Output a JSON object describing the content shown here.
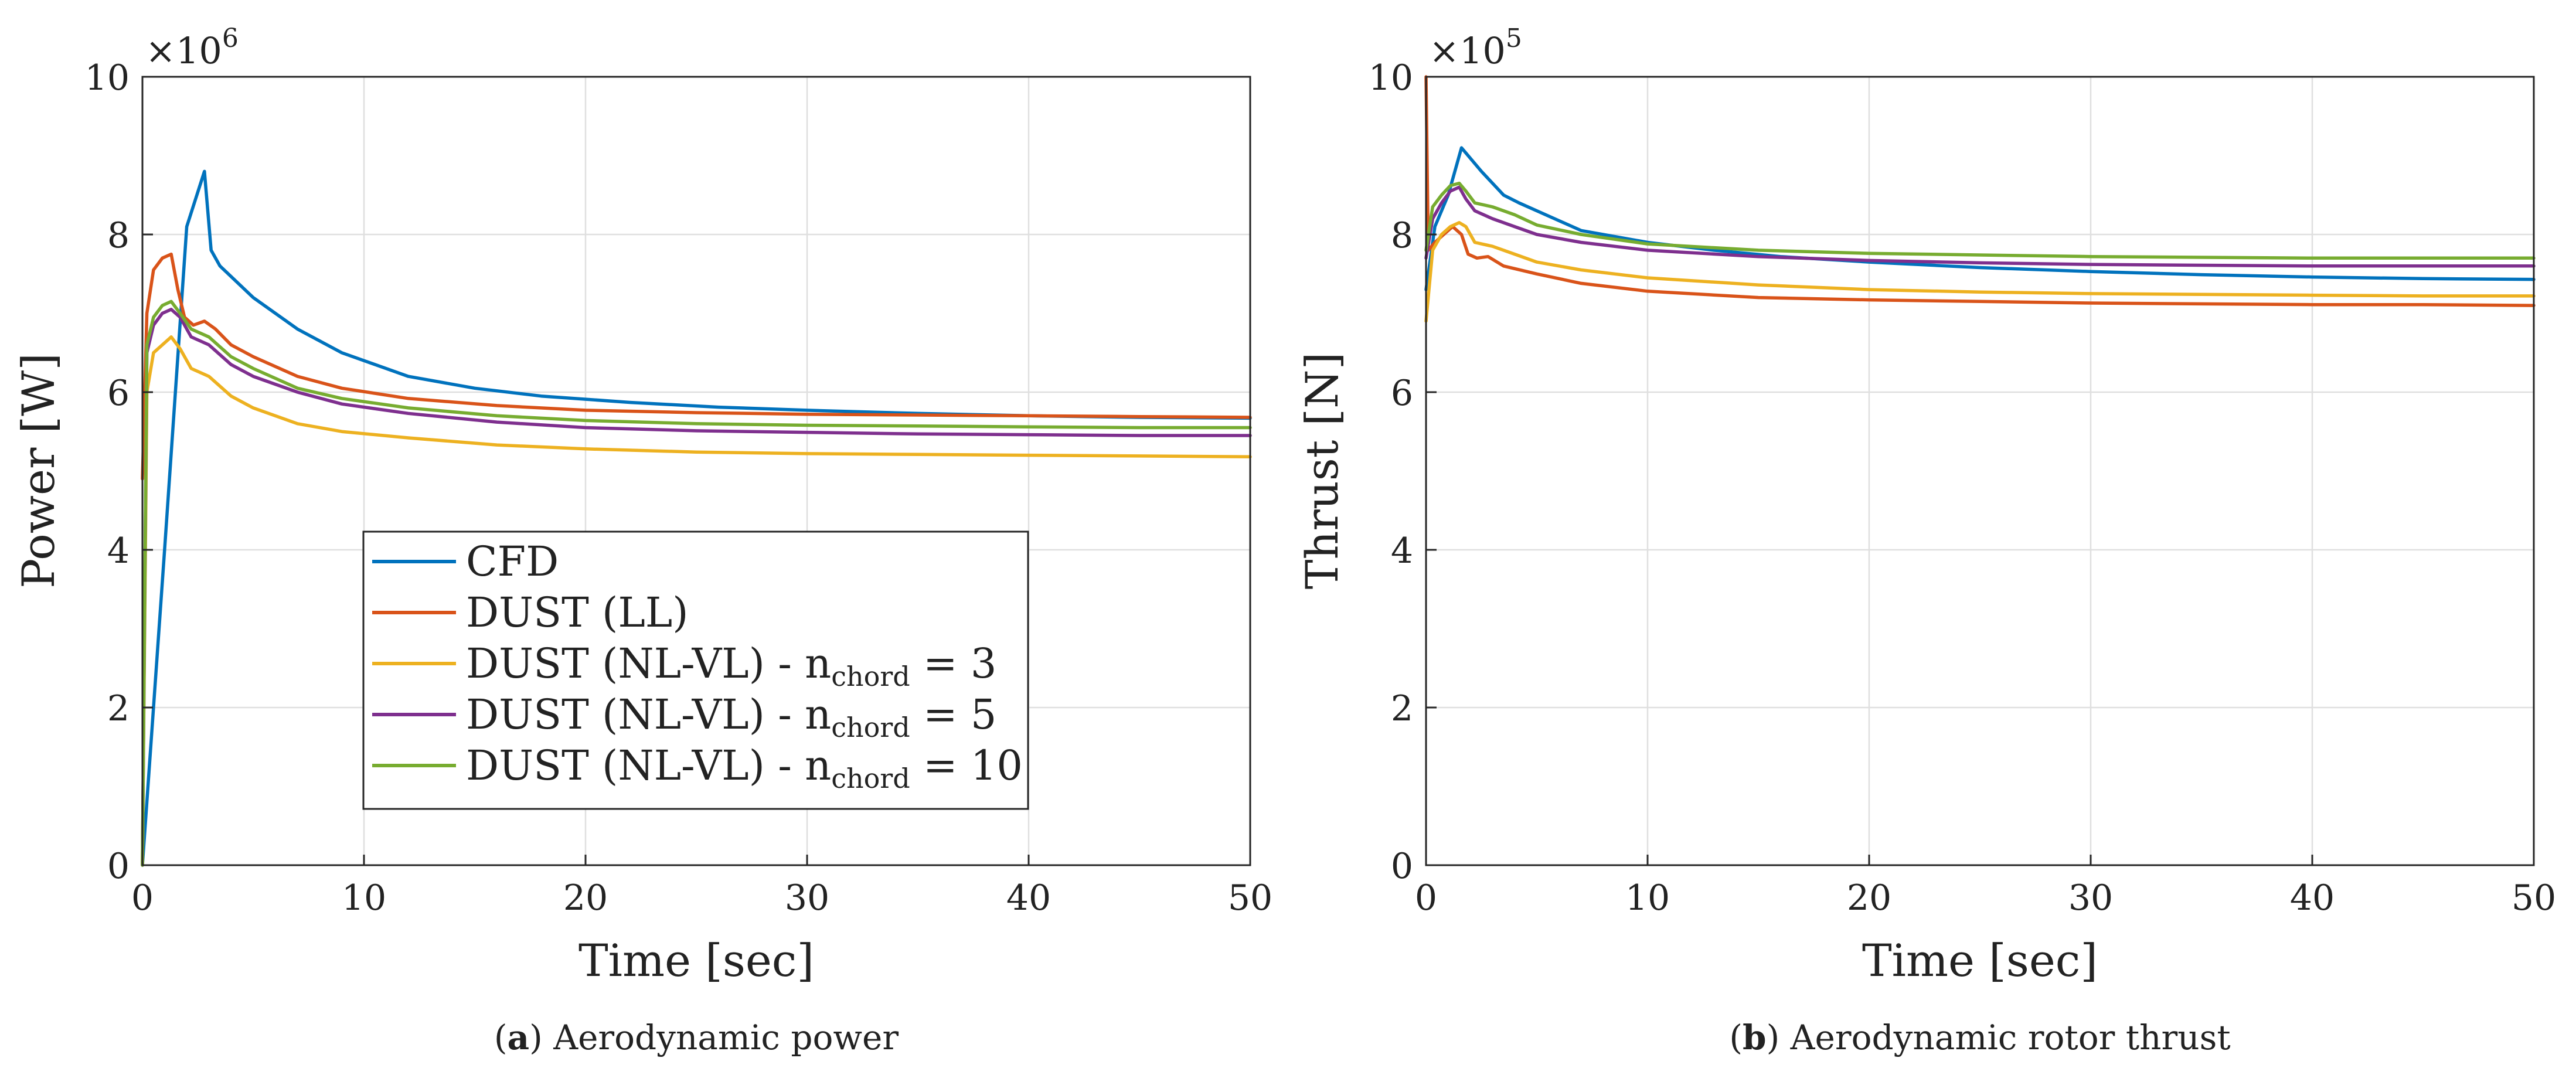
{
  "colors": {
    "cfd": "#0072BD",
    "ll": "#D95319",
    "nc3": "#EDB120",
    "nc5": "#7E2F8E",
    "nc10": "#77AC30",
    "grid": "#dfdfdf",
    "axis": "#262626"
  },
  "legend": {
    "items": [
      {
        "key": "cfd",
        "label": "CFD"
      },
      {
        "key": "ll",
        "label": "DUST (LL)"
      },
      {
        "key": "nc3",
        "label": "DUST (NL-VL) - n",
        "sub": "chord",
        "tail": " = 3"
      },
      {
        "key": "nc5",
        "label": "DUST (NL-VL) - n",
        "sub": "chord",
        "tail": " = 5"
      },
      {
        "key": "nc10",
        "label": "DUST (NL-VL) - n",
        "sub": "chord",
        "tail": " = 10"
      }
    ]
  },
  "chart_data": [
    {
      "id": "power",
      "type": "line",
      "caption_letter": "a",
      "caption_text": " Aerodynamic power",
      "xlabel": "Time [sec]",
      "ylabel": "Power [W]",
      "multiplier_base": "×10",
      "multiplier_exp": "6",
      "xlim": [
        0,
        50
      ],
      "ylim": [
        0,
        10
      ],
      "xticks": [
        "0",
        "10",
        "20",
        "30",
        "40",
        "50"
      ],
      "yticks": [
        "0",
        "2",
        "4",
        "6",
        "8",
        "10"
      ],
      "legend_position": "lower-left-center",
      "series": [
        {
          "key": "cfd",
          "name": "CFD",
          "x": [
            0,
            1,
            2,
            2.8,
            3.1,
            3.5,
            5,
            7,
            9,
            12,
            15,
            18,
            22,
            26,
            30,
            35,
            40,
            45,
            50
          ],
          "y": [
            0,
            4,
            8.1,
            8.8,
            7.8,
            7.6,
            7.2,
            6.8,
            6.5,
            6.2,
            6.05,
            5.95,
            5.87,
            5.81,
            5.77,
            5.73,
            5.7,
            5.68,
            5.67
          ]
        },
        {
          "key": "ll",
          "name": "DUST (LL)",
          "x": [
            0,
            0.2,
            0.5,
            0.9,
            1.3,
            1.6,
            1.9,
            2.3,
            2.8,
            3.3,
            4,
            5,
            7,
            9,
            12,
            16,
            20,
            25,
            30,
            35,
            40,
            45,
            50
          ],
          "y": [
            4.9,
            7.0,
            7.55,
            7.7,
            7.75,
            7.3,
            6.95,
            6.85,
            6.9,
            6.8,
            6.6,
            6.45,
            6.2,
            6.05,
            5.92,
            5.83,
            5.77,
            5.74,
            5.72,
            5.71,
            5.7,
            5.69,
            5.68
          ]
        },
        {
          "key": "nc3",
          "name": "DUST (NL-VL) - nchord = 3",
          "x": [
            0,
            0.2,
            0.5,
            0.9,
            1.3,
            1.7,
            2.2,
            3,
            4,
            5,
            7,
            9,
            12,
            16,
            20,
            25,
            30,
            35,
            40,
            45,
            50
          ],
          "y": [
            0,
            6.0,
            6.5,
            6.6,
            6.7,
            6.55,
            6.3,
            6.2,
            5.95,
            5.8,
            5.6,
            5.5,
            5.42,
            5.33,
            5.28,
            5.24,
            5.22,
            5.21,
            5.2,
            5.19,
            5.18
          ]
        },
        {
          "key": "nc5",
          "name": "DUST (NL-VL) - nchord = 5",
          "x": [
            0,
            0.2,
            0.5,
            0.9,
            1.3,
            1.7,
            2.2,
            3,
            4,
            5,
            7,
            9,
            12,
            16,
            20,
            25,
            30,
            35,
            40,
            45,
            50
          ],
          "y": [
            0,
            6.5,
            6.85,
            7.0,
            7.05,
            6.95,
            6.7,
            6.6,
            6.35,
            6.2,
            6.0,
            5.85,
            5.73,
            5.62,
            5.55,
            5.51,
            5.49,
            5.47,
            5.46,
            5.45,
            5.45
          ]
        },
        {
          "key": "nc10",
          "name": "DUST (NL-VL) - nchord = 10",
          "x": [
            0,
            0.2,
            0.5,
            0.9,
            1.3,
            1.7,
            2.2,
            3,
            4,
            5,
            7,
            9,
            12,
            16,
            20,
            25,
            30,
            35,
            40,
            45,
            50
          ],
          "y": [
            0,
            6.6,
            6.95,
            7.1,
            7.15,
            7.0,
            6.8,
            6.7,
            6.45,
            6.3,
            6.05,
            5.92,
            5.8,
            5.7,
            5.64,
            5.6,
            5.58,
            5.57,
            5.56,
            5.55,
            5.55
          ]
        }
      ]
    },
    {
      "id": "thrust",
      "type": "line",
      "caption_letter": "b",
      "caption_text": " Aerodynamic rotor thrust",
      "xlabel": "Time [sec]",
      "ylabel": "Thrust [N]",
      "multiplier_base": "×10",
      "multiplier_exp": "5",
      "xlim": [
        0,
        50
      ],
      "ylim": [
        0,
        10
      ],
      "xticks": [
        "0",
        "10",
        "20",
        "30",
        "40",
        "50"
      ],
      "yticks": [
        "0",
        "2",
        "4",
        "6",
        "8",
        "10"
      ],
      "legend_position": "none",
      "series": [
        {
          "key": "cfd",
          "name": "CFD",
          "x": [
            0,
            0.4,
            1.0,
            1.6,
            2.5,
            3.5,
            4.2,
            5,
            7,
            10,
            13,
            16,
            20,
            25,
            30,
            35,
            40,
            45,
            50
          ],
          "y": [
            7.3,
            8.1,
            8.5,
            9.1,
            8.8,
            8.5,
            8.4,
            8.3,
            8.05,
            7.9,
            7.8,
            7.72,
            7.65,
            7.58,
            7.53,
            7.49,
            7.46,
            7.44,
            7.43
          ]
        },
        {
          "key": "ll",
          "name": "DUST (LL)",
          "x": [
            0,
            0.1,
            0.4,
            0.8,
            1.2,
            1.6,
            1.9,
            2.3,
            2.8,
            3.5,
            5,
            7,
            10,
            15,
            20,
            25,
            30,
            35,
            40,
            45,
            50
          ],
          "y": [
            10.0,
            7.8,
            7.9,
            8.0,
            8.1,
            8.0,
            7.75,
            7.7,
            7.72,
            7.6,
            7.5,
            7.38,
            7.28,
            7.2,
            7.17,
            7.15,
            7.13,
            7.12,
            7.11,
            7.11,
            7.1
          ]
        },
        {
          "key": "nc3",
          "name": "DUST (NL-VL) - nchord = 3",
          "x": [
            0,
            0.3,
            0.7,
            1.1,
            1.5,
            1.8,
            2.2,
            3,
            4,
            5,
            7,
            10,
            15,
            20,
            25,
            30,
            35,
            40,
            45,
            50
          ],
          "y": [
            6.9,
            7.8,
            8.0,
            8.1,
            8.15,
            8.1,
            7.9,
            7.85,
            7.75,
            7.65,
            7.55,
            7.45,
            7.36,
            7.3,
            7.27,
            7.25,
            7.24,
            7.23,
            7.22,
            7.22
          ]
        },
        {
          "key": "nc5",
          "name": "DUST (NL-VL) - nchord = 5",
          "x": [
            0,
            0.3,
            0.7,
            1.1,
            1.5,
            1.8,
            2.2,
            3,
            4,
            5,
            7,
            10,
            15,
            20,
            25,
            30,
            35,
            40,
            45,
            50
          ],
          "y": [
            7.7,
            8.2,
            8.4,
            8.55,
            8.6,
            8.45,
            8.3,
            8.2,
            8.1,
            8.0,
            7.9,
            7.8,
            7.72,
            7.67,
            7.64,
            7.62,
            7.61,
            7.6,
            7.6,
            7.6
          ]
        },
        {
          "key": "nc10",
          "name": "DUST (NL-VL) - nchord = 10",
          "x": [
            0,
            0.3,
            0.7,
            1.1,
            1.5,
            1.8,
            2.2,
            3,
            4,
            5,
            7,
            10,
            15,
            20,
            25,
            30,
            35,
            40,
            45,
            50
          ],
          "y": [
            7.8,
            8.35,
            8.5,
            8.62,
            8.65,
            8.55,
            8.4,
            8.35,
            8.25,
            8.12,
            8.0,
            7.88,
            7.8,
            7.76,
            7.74,
            7.72,
            7.71,
            7.7,
            7.7,
            7.7
          ]
        }
      ]
    }
  ]
}
